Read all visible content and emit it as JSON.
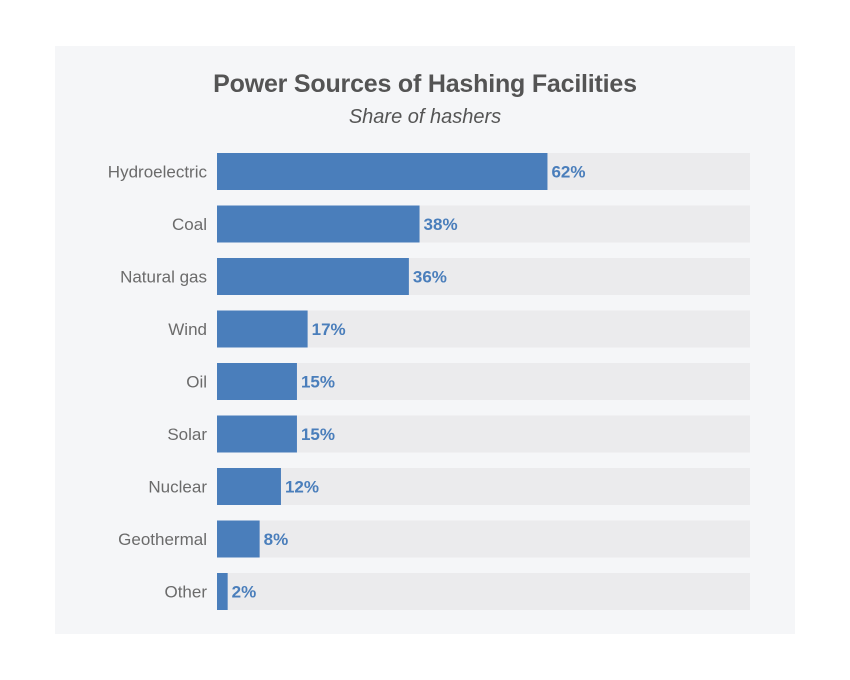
{
  "chart_data": {
    "type": "bar",
    "orientation": "horizontal",
    "title": "Power Sources of Hashing Facilities",
    "subtitle": "Share of hashers",
    "categories": [
      "Hydroelectric",
      "Coal",
      "Natural gas",
      "Wind",
      "Oil",
      "Solar",
      "Nuclear",
      "Geothermal",
      "Other"
    ],
    "values": [
      62,
      38,
      36,
      17,
      15,
      15,
      12,
      8,
      2
    ],
    "value_labels": [
      "62%",
      "38%",
      "36%",
      "17%",
      "15%",
      "15%",
      "12%",
      "8%",
      "2%"
    ],
    "xlim": [
      0,
      100
    ],
    "grid": false,
    "colors": {
      "bar": "#4a7ebb",
      "track": "#ebebed",
      "value_label": "#4a7ebb",
      "background": "#f5f6f8"
    }
  }
}
